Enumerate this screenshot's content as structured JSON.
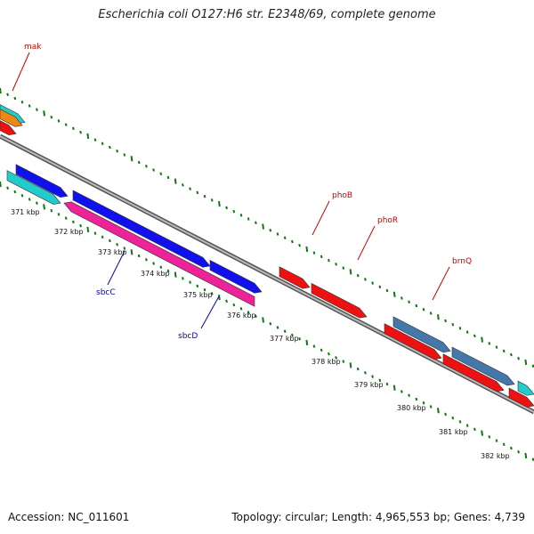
{
  "title": "Escherichia coli O127:H6 str. E2348/69, complete genome",
  "footer": {
    "accession": "Accession: NC_011601",
    "topology": "Topology: circular; Length: 4,965,553 bp; Genes: 4,739"
  },
  "ticks": [
    {
      "label": "371 kbp"
    },
    {
      "label": "372 kbp"
    },
    {
      "label": "373 kbp"
    },
    {
      "label": "374 kbp"
    },
    {
      "label": "375 kbp"
    },
    {
      "label": "376 kbp"
    },
    {
      "label": "377 kbp"
    },
    {
      "label": "378 kbp"
    },
    {
      "label": "379 kbp"
    },
    {
      "label": "380 kbp"
    },
    {
      "label": "381 kbp"
    },
    {
      "label": "382 kbp"
    }
  ],
  "gene_labels": [
    {
      "name": "mak",
      "color": "red"
    },
    {
      "name": "phoB",
      "color": "red"
    },
    {
      "name": "phoR",
      "color": "red"
    },
    {
      "name": "brnQ",
      "color": "red"
    },
    {
      "name": "sbcC",
      "color": "blue"
    },
    {
      "name": "sbcD",
      "color": "blue"
    }
  ],
  "colors": {
    "red": "#ee1111",
    "blue": "#1111ee",
    "pink": "#ee2299",
    "cyan": "#22cccc",
    "steel": "#4477aa",
    "orange": "#ee8811",
    "backbone": "#888888",
    "ticks": "#117711"
  }
}
